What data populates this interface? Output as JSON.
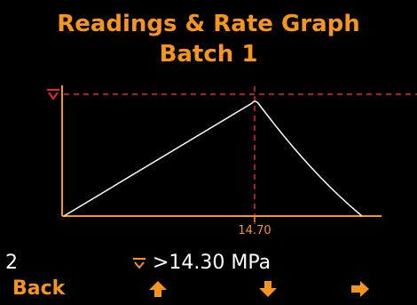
{
  "header": {
    "title_line1": "Readings & Rate Graph",
    "title_line2": "Batch 1"
  },
  "graph": {
    "peak_value_label": "14.70",
    "threshold_icon": "threshold-limit-icon",
    "colors": {
      "axis": "#f7941d",
      "curve": "#ffffff",
      "threshold_line": "#e32b2b",
      "peak_marker_line": "#e32b2b",
      "threshold_marker": "#e32b2b"
    }
  },
  "status": {
    "index": "2",
    "limit_icon": "threshold-limit-icon",
    "limit_text": ">14.30 MPa"
  },
  "softkeys": {
    "back_label": "Back",
    "up_icon": "arrow-up-icon",
    "down_icon": "arrow-down-icon",
    "right_icon": "arrow-right-icon",
    "color": "#f7941d"
  }
}
